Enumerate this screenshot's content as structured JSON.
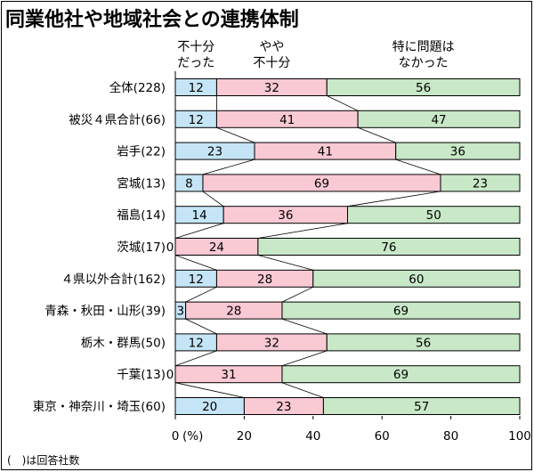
{
  "chart_data": {
    "type": "bar",
    "title": "同業他社や地域社会との連携体制",
    "orientation": "horizontal-stacked-100",
    "series": [
      {
        "name": "不十分だった",
        "color": "#c5e5f7"
      },
      {
        "name": "やや不十分",
        "color": "#f9c9d4"
      },
      {
        "name": "特に問題はなかった",
        "color": "#c8e8c8"
      }
    ],
    "series_header_lines": [
      [
        "不十分",
        "だった"
      ],
      [
        "やや",
        "不十分"
      ],
      [
        "特に問題は",
        "なかった"
      ]
    ],
    "categories": [
      "全体(228)",
      "被災４県合計(66)",
      "岩手(22)",
      "宮城(13)",
      "福島(14)",
      "茨城(17)",
      "４県以外合計(162)",
      "青森・秋田・山形(39)",
      "栃木・群馬(50)",
      "千葉(13)",
      "東京・神奈川・埼玉(60)"
    ],
    "values": [
      [
        12,
        32,
        56
      ],
      [
        12,
        41,
        47
      ],
      [
        23,
        41,
        36
      ],
      [
        8,
        69,
        23
      ],
      [
        14,
        36,
        50
      ],
      [
        0,
        24,
        76
      ],
      [
        12,
        28,
        60
      ],
      [
        3,
        28,
        69
      ],
      [
        12,
        32,
        56
      ],
      [
        0,
        31,
        69
      ],
      [
        20,
        23,
        57
      ]
    ],
    "xlim": [
      0,
      100
    ],
    "xticks": [
      "0",
      "20",
      "40",
      "60",
      "80",
      "100"
    ],
    "xunit": "(%)",
    "footnote": "(　)は回答社数"
  }
}
